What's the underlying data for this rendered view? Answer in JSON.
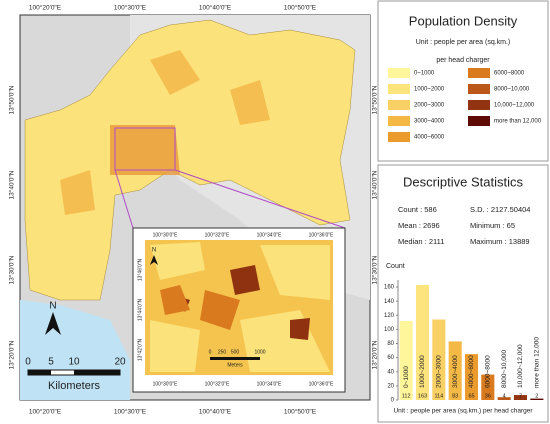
{
  "map": {
    "top_ticks": [
      "100°20'0\"E",
      "100°30'0\"E",
      "100°40'0\"E",
      "100°50'0\"E"
    ],
    "bottom_ticks": [
      "100°20'0\"E",
      "100°30'0\"E",
      "100°40'0\"E",
      "100°50'0\"E"
    ],
    "left_ticks": [
      "13°50'0\"N",
      "13°40'0\"N",
      "13°30'0\"N",
      "13°20'0\"N"
    ],
    "right_ticks": [
      "13°50'0\"N",
      "13°40'0\"N",
      "13°30'0\"N",
      "13°20'0\"N"
    ],
    "north": "N",
    "scale_labels": [
      "0",
      "5",
      "10",
      "20"
    ],
    "scale_unit": "Kilometers",
    "inset": {
      "top_ticks": [
        "100°30'0\"E",
        "100°32'0\"E",
        "100°34'0\"E",
        "100°36'0\"E"
      ],
      "bottom_ticks": [
        "100°30'0\"E",
        "100°32'0\"E",
        "100°34'0\"E",
        "100°36'0\"E"
      ],
      "left_ticks": [
        "13°46'0\"N",
        "13°44'0\"N",
        "13°42'0\"N"
      ],
      "north": "N",
      "scale_labels": [
        "0",
        "250",
        "500",
        "1000"
      ],
      "scale_unit": "Meters"
    }
  },
  "legend": {
    "title": "Population Density",
    "unit": "Unit : people per area (sq.km.)",
    "unit2": "per head charger"
  },
  "stats": {
    "title": "Descriptive Statistics",
    "items": [
      "Count : 586",
      "S.D. : 2127.50404",
      "Mean : 2696",
      "Minimum : 65",
      "Median : 2111",
      "Maximum : 13889"
    ],
    "note": "Unit : people per area (sq.km.) per head charger"
  },
  "chart_data": {
    "type": "bar",
    "y_label": "Count",
    "categories": [
      "0~1000",
      "1000~2000",
      "2000~3000",
      "3000~4000",
      "4000~6000",
      "6000~8000",
      "8000~10,000",
      "10,000~12,000",
      "more than 12,000"
    ],
    "values": [
      112,
      163,
      114,
      83,
      65,
      36,
      4,
      7,
      2
    ],
    "colors": [
      "#fff59a",
      "#fde47c",
      "#f9d063",
      "#f4b845",
      "#eb9a2c",
      "#d97a1f",
      "#bb5718",
      "#923311",
      "#5e0b06"
    ],
    "ylim": [
      0,
      170
    ],
    "yticks": [
      0,
      20,
      40,
      60,
      80,
      100,
      120,
      140,
      160
    ]
  }
}
